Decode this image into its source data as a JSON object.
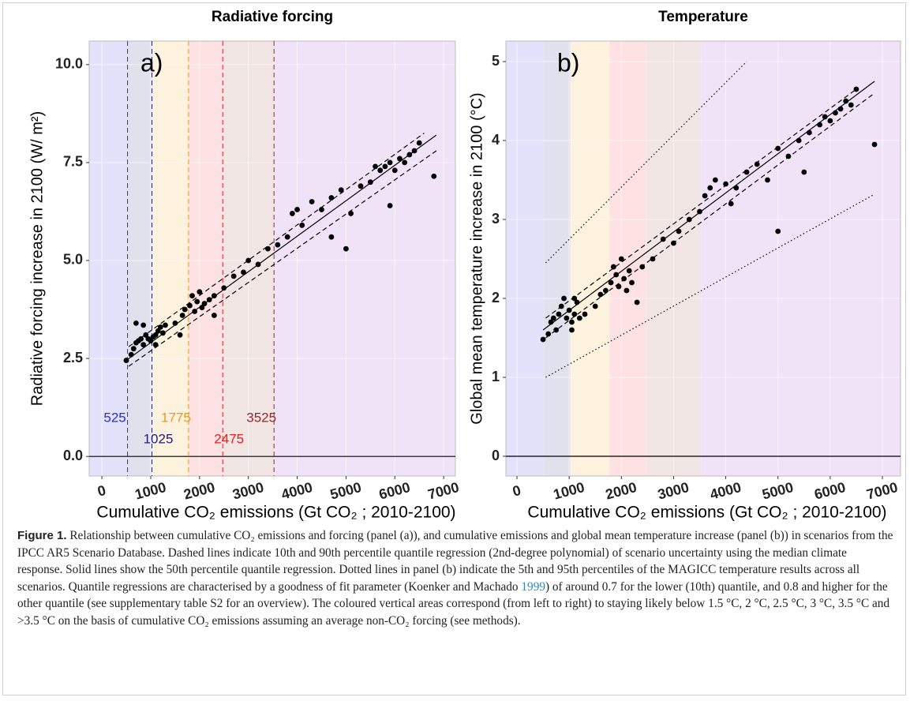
{
  "chart_data": [
    {
      "type": "scatter",
      "title": "Radiative forcing",
      "annotation": "a)",
      "x_label": "Cumulative CO₂ emissions (Gt CO₂ ; 2010-2100)",
      "y_label": "Radiative forcing increase in 2100 (W/ m²)",
      "xlim": [
        -260,
        7240
      ],
      "ylim": [
        -0.5,
        10.6
      ],
      "xticks": [
        0,
        1000,
        2000,
        3000,
        4000,
        5000,
        6000,
        7000
      ],
      "yticks": [
        {
          "value": 0,
          "label": "0.0"
        },
        {
          "value": 2.5,
          "label": "2.5"
        },
        {
          "value": 5,
          "label": "5.0"
        },
        {
          "value": 7.5,
          "label": "7.5"
        },
        {
          "value": 10,
          "label": "10.0"
        }
      ],
      "grid": true,
      "color": "#000000",
      "band_edges": [
        525,
        1025,
        1775,
        2475,
        3525
      ],
      "band_colors": [
        "#e2e2fb",
        "#e1e1ee",
        "#fcf2de",
        "#fde1e3",
        "#f1e6e4",
        "#f1e3f7"
      ],
      "threshold_lines": true,
      "threshold_colors": [
        "#2b2bd9",
        "#1e1e7a",
        "#e89a1c",
        "#e82020",
        "#9a2424"
      ],
      "x": [
        500,
        600,
        650,
        700,
        750,
        800,
        850,
        900,
        950,
        700,
        850,
        1000,
        1050,
        1100,
        1150,
        1200,
        1100,
        1250,
        1300,
        1500,
        1650,
        1700,
        1800,
        1850,
        1900,
        1950,
        2000,
        2050,
        2100,
        2200,
        2300,
        2500,
        2700,
        2900,
        3000,
        3200,
        3400,
        3600,
        3800,
        3900,
        4000,
        4100,
        4300,
        4500,
        4700,
        4900,
        5000,
        5100,
        5300,
        5500,
        5600,
        5700,
        5800,
        5900,
        6000,
        6100,
        6200,
        6300,
        6400,
        6500,
        5900,
        6800,
        2300,
        1600,
        4700
      ],
      "values": [
        2.45,
        2.6,
        2.75,
        2.9,
        2.95,
        3.0,
        2.85,
        3.1,
        3.0,
        3.4,
        3.35,
        2.95,
        3.05,
        3.1,
        3.2,
        3.3,
        2.85,
        3.15,
        3.35,
        3.4,
        3.6,
        3.75,
        3.85,
        4.1,
        3.7,
        3.95,
        4.2,
        3.8,
        3.9,
        4.0,
        4.1,
        4.3,
        4.6,
        4.7,
        5.0,
        4.9,
        5.3,
        5.4,
        5.6,
        6.2,
        6.3,
        5.9,
        6.5,
        6.3,
        6.6,
        6.8,
        5.3,
        6.2,
        6.9,
        7.0,
        7.4,
        7.3,
        7.4,
        7.5,
        7.3,
        7.6,
        7.5,
        7.7,
        7.8,
        8.0,
        6.4,
        7.15,
        3.6,
        3.1,
        5.6
      ],
      "lines": [
        {
          "style": "solid",
          "x": [
            500,
            6850
          ],
          "values": [
            2.45,
            8.2
          ]
        },
        {
          "style": "dashed",
          "x": [
            550,
            6600
          ],
          "values": [
            2.8,
            8.25
          ]
        },
        {
          "style": "dashed",
          "x": [
            550,
            6850
          ],
          "values": [
            2.3,
            7.8
          ]
        }
      ]
    },
    {
      "type": "scatter",
      "title": "Temperature",
      "annotation": "b)",
      "x_label": "Cumulative CO₂ emissions (Gt CO₂ ; 2010-2100)",
      "y_label": "Global mean temperature increase in 2100 (°C)",
      "xlim": [
        -212,
        7348
      ],
      "ylim": [
        -0.25,
        5.26
      ],
      "xticks": [
        0,
        1000,
        2000,
        3000,
        4000,
        5000,
        6000,
        7000
      ],
      "yticks": [
        0,
        1,
        2,
        3,
        4,
        5
      ],
      "grid": true,
      "color": "#000000",
      "band_edges": [
        525,
        1025,
        1775,
        2475,
        3525
      ],
      "band_colors": [
        "#e2e2fb",
        "#e1e1ee",
        "#fcf2de",
        "#fde1e3",
        "#f1e6e4",
        "#f1e3f7"
      ],
      "threshold_lines": false,
      "x": [
        500,
        600,
        650,
        700,
        750,
        800,
        850,
        900,
        950,
        1000,
        1050,
        1100,
        1150,
        1200,
        1100,
        1050,
        1300,
        1500,
        1600,
        1700,
        1800,
        1850,
        1900,
        1950,
        2000,
        2050,
        2100,
        2150,
        2200,
        2400,
        2600,
        2800,
        3000,
        3100,
        3300,
        3500,
        3600,
        3700,
        3800,
        4000,
        4200,
        4400,
        4600,
        4800,
        5000,
        5000,
        5200,
        5400,
        5500,
        5600,
        5800,
        5900,
        6000,
        6100,
        6200,
        6300,
        6400,
        6500,
        6850,
        4100,
        2300
      ],
      "values": [
        1.48,
        1.55,
        1.7,
        1.75,
        1.6,
        1.8,
        1.9,
        2.0,
        1.75,
        1.85,
        1.7,
        1.8,
        1.95,
        1.75,
        2.0,
        1.6,
        1.8,
        1.9,
        2.05,
        2.1,
        2.2,
        2.4,
        2.3,
        2.15,
        2.5,
        2.25,
        2.1,
        2.35,
        2.2,
        2.4,
        2.5,
        2.75,
        2.7,
        2.85,
        3.0,
        3.1,
        3.3,
        3.4,
        3.5,
        3.45,
        3.4,
        3.6,
        3.7,
        3.5,
        2.85,
        3.9,
        3.8,
        4.0,
        3.6,
        4.1,
        4.2,
        4.3,
        4.25,
        4.35,
        4.4,
        4.5,
        4.45,
        4.65,
        3.95,
        3.2,
        1.95
      ],
      "lines": [
        {
          "style": "solid",
          "x": [
            500,
            6850
          ],
          "values": [
            1.6,
            4.75
          ]
        },
        {
          "style": "dashed",
          "x": [
            550,
            6500
          ],
          "values": [
            1.75,
            4.65
          ]
        },
        {
          "style": "dashed",
          "x": [
            550,
            6850
          ],
          "values": [
            1.5,
            4.6
          ]
        },
        {
          "style": "dotted",
          "x": [
            550,
            4400
          ],
          "values": [
            2.45,
            5.0
          ]
        },
        {
          "style": "dotted",
          "x": [
            550,
            6850
          ],
          "values": [
            1.0,
            3.32
          ]
        }
      ]
    }
  ],
  "caption": {
    "label": "Figure 1.",
    "text_before": "Relationship between cumulative CO₂ emissions and forcing (panel (a)), and cumulative emissions and global mean temperature increase (panel (b)) in scenarios from the IPCC AR5 Scenario Database. Dashed lines indicate 10th and 90th percentile quantile regression (2nd-degree polynomial) of scenario uncertainty using the median climate response. Solid lines show the 50th percentile quantile regression. Dotted lines in panel (b) indicate the 5th and 95th percentiles of the MAGICC temperature results across all scenarios. Quantile regressions are characterised by a goodness of fit parameter (Koenker and Machado ",
    "link": "1999",
    "text_after": ") of around 0.7 for the lower (10th) quantile, and 0.8 and higher for the other quantile (see supplementary table S2 for an overview). The coloured vertical areas correspond (from left to right) to staying likely below 1.5 °C, 2 °C, 2.5 °C, 3 °C, 3.5 °C and >3.5 °C on the basis of cumulative CO₂ emissions assuming an average non-CO₂ forcing (see methods)."
  }
}
